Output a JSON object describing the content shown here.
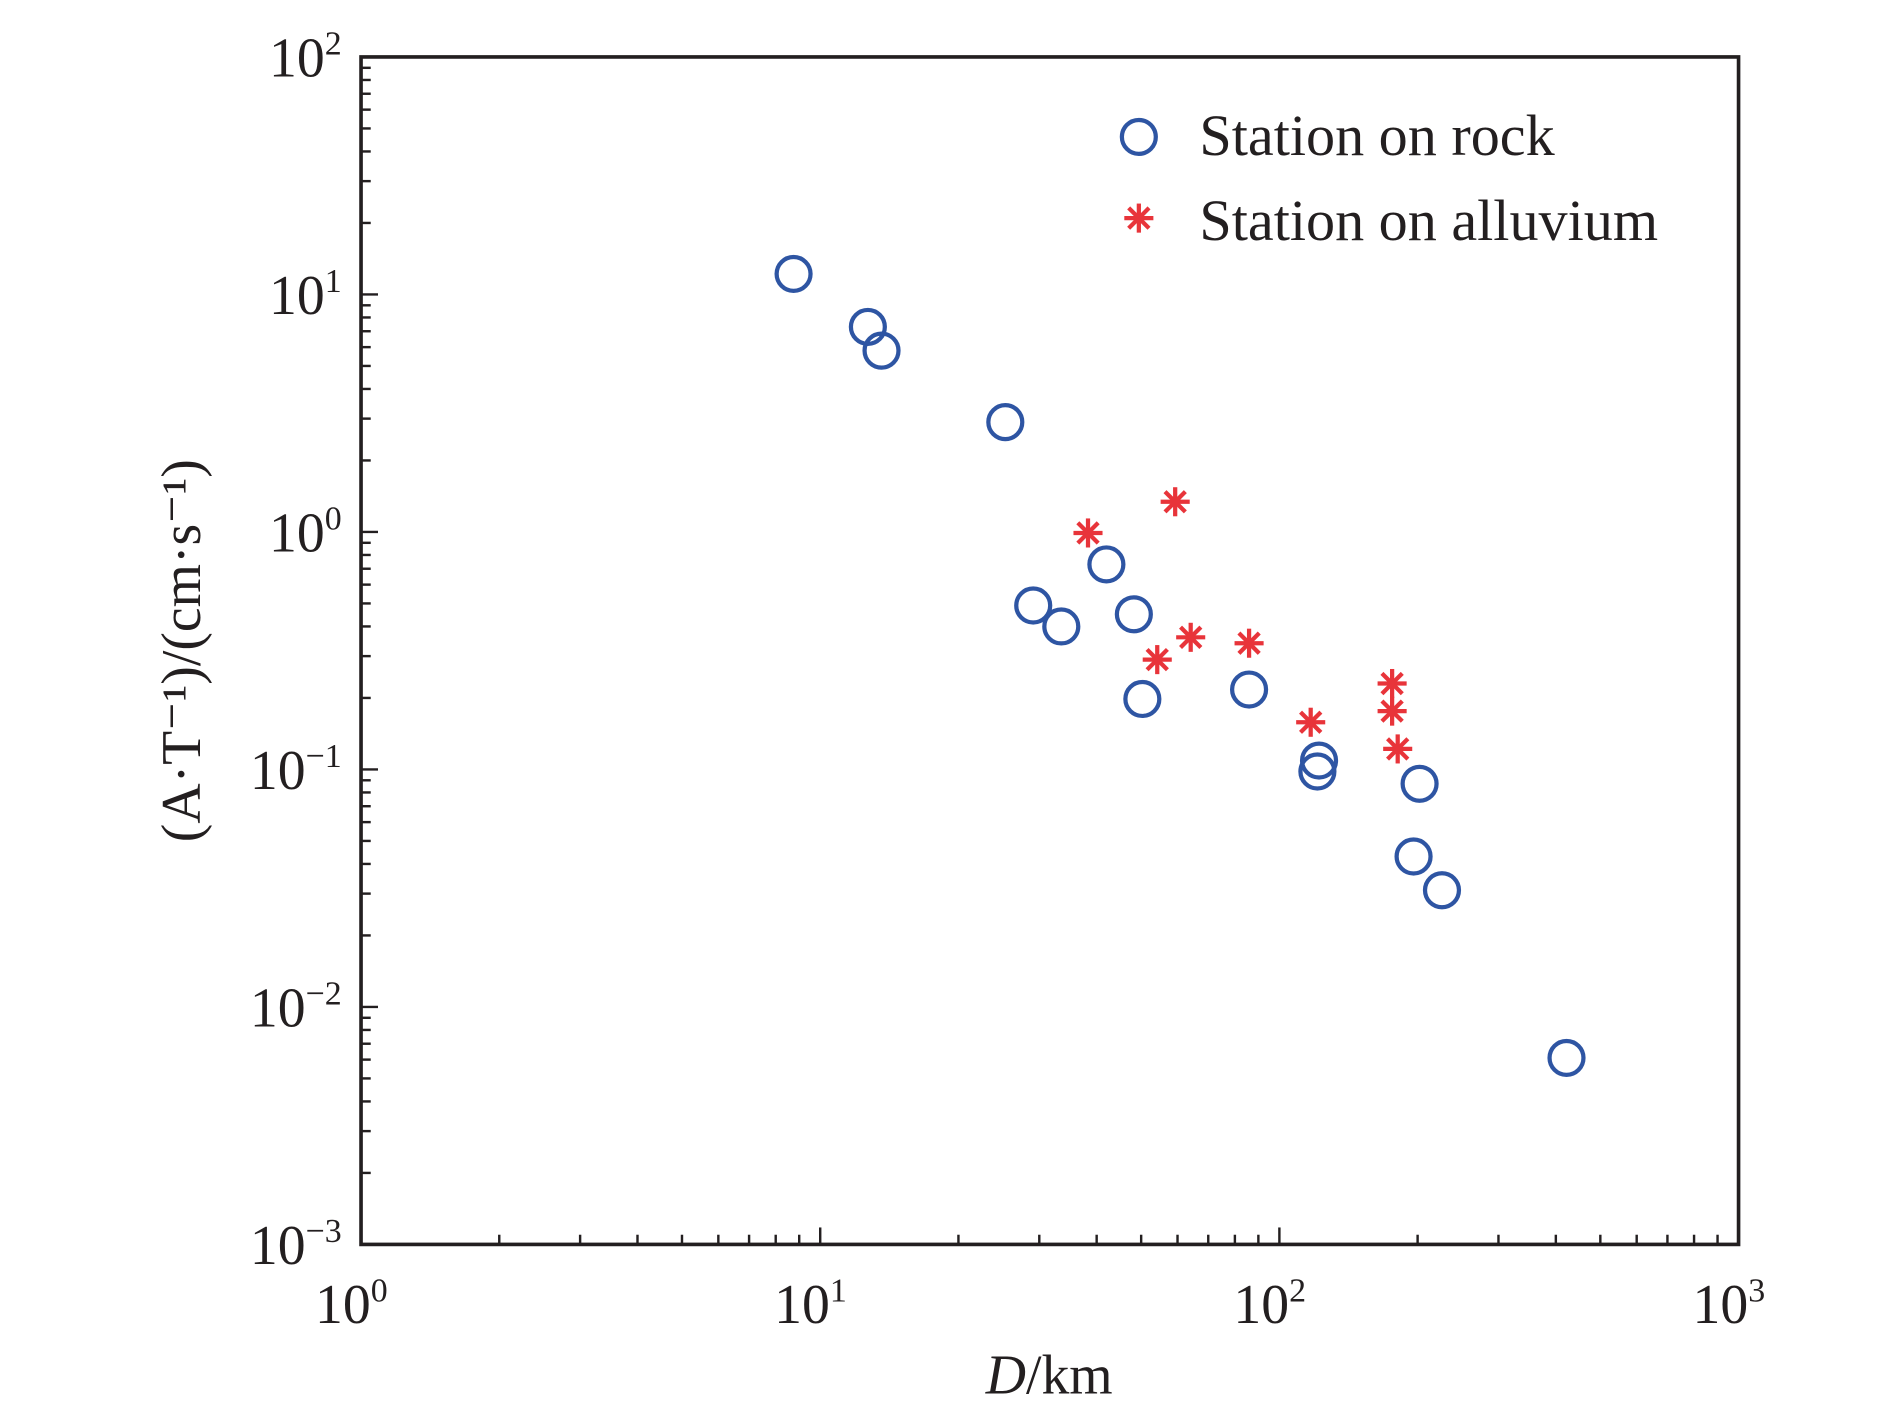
{
  "chart_data": {
    "type": "scatter",
    "title": "",
    "xlabel_italic": "D",
    "xlabel_rest": "/km",
    "ylabel": "(A·T⁻¹)/(cm·s⁻¹)",
    "x_scale": "log",
    "y_scale": "log",
    "xlim": [
      1,
      1000
    ],
    "ylim": [
      0.001,
      100
    ],
    "x_ticks": [
      {
        "base": "10",
        "exp": "0",
        "value": 1
      },
      {
        "base": "10",
        "exp": "1",
        "value": 10
      },
      {
        "base": "10",
        "exp": "2",
        "value": 100
      },
      {
        "base": "10",
        "exp": "3",
        "value": 1000
      }
    ],
    "y_ticks": [
      {
        "base": "10",
        "exp": "2",
        "value": 100
      },
      {
        "base": "10",
        "exp": "1",
        "value": 10
      },
      {
        "base": "10",
        "exp": "0",
        "value": 1
      },
      {
        "base": "10",
        "exp": "−1",
        "value": 0.1
      },
      {
        "base": "10",
        "exp": "−2",
        "value": 0.01
      },
      {
        "base": "10",
        "exp": "−3",
        "value": 0.001
      }
    ],
    "grid": false,
    "legend_position": "top-right",
    "series": [
      {
        "name": "Station on rock",
        "marker": "open-circle",
        "color": "#2e55a3",
        "x": [
          8.75,
          12.7,
          13.6,
          25.3,
          29.1,
          33.5,
          42.0,
          48.2,
          50.3,
          85.9,
          122,
          121,
          202,
          196,
          226,
          422
        ],
        "y": [
          12.2,
          7.3,
          5.8,
          2.9,
          0.49,
          0.4,
          0.73,
          0.45,
          0.198,
          0.217,
          0.109,
          0.098,
          0.087,
          0.043,
          0.031,
          0.0061
        ]
      },
      {
        "name": "Station on alluvium",
        "marker": "asterisk",
        "color": "#e8343a",
        "x": [
          38.3,
          59.3,
          54.2,
          64.1,
          85.9,
          117,
          176,
          176,
          181
        ],
        "y": [
          0.99,
          1.34,
          0.29,
          0.36,
          0.34,
          0.158,
          0.23,
          0.176,
          0.122
        ]
      }
    ]
  }
}
